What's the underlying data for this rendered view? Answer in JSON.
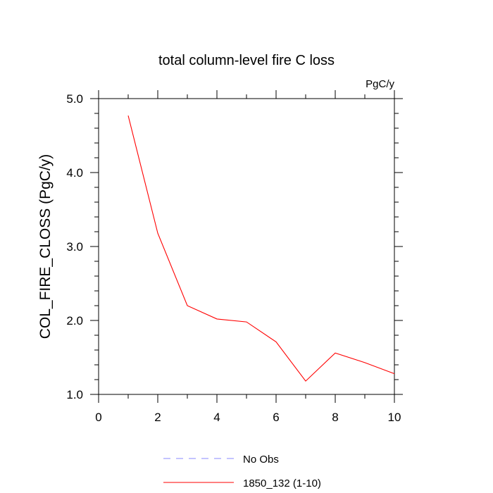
{
  "chart_data": {
    "type": "line",
    "title": "total column-level fire C loss",
    "units_label": "PgC/y",
    "xlabel": "",
    "ylabel": "COL_FIRE_CLOSS  (PgC/y)",
    "xlim": [
      0,
      10
    ],
    "ylim": [
      1.0,
      5.0
    ],
    "x_ticks": [
      0,
      2,
      4,
      6,
      8,
      10
    ],
    "x_tick_labels": [
      "0",
      "2",
      "4",
      "6",
      "8",
      "10"
    ],
    "y_ticks": [
      1.0,
      2.0,
      3.0,
      4.0,
      5.0
    ],
    "y_tick_labels": [
      "1.0",
      "2.0",
      "3.0",
      "4.0",
      "5.0"
    ],
    "grid": false,
    "legend_position": "bottom",
    "series": [
      {
        "name": "1850_132 (1-10)",
        "color": "#ff0000",
        "style": "solid",
        "x": [
          1,
          2,
          3,
          4,
          5,
          6,
          7,
          8,
          9,
          10
        ],
        "y": [
          4.77,
          3.18,
          2.2,
          2.02,
          1.98,
          1.71,
          1.18,
          1.56,
          1.43,
          1.28
        ]
      }
    ],
    "legend": [
      {
        "label": "No Obs",
        "color": "#8888ff",
        "style": "dashed"
      },
      {
        "label": "1850_132 (1-10)",
        "color": "#ff0000",
        "style": "solid"
      }
    ]
  }
}
